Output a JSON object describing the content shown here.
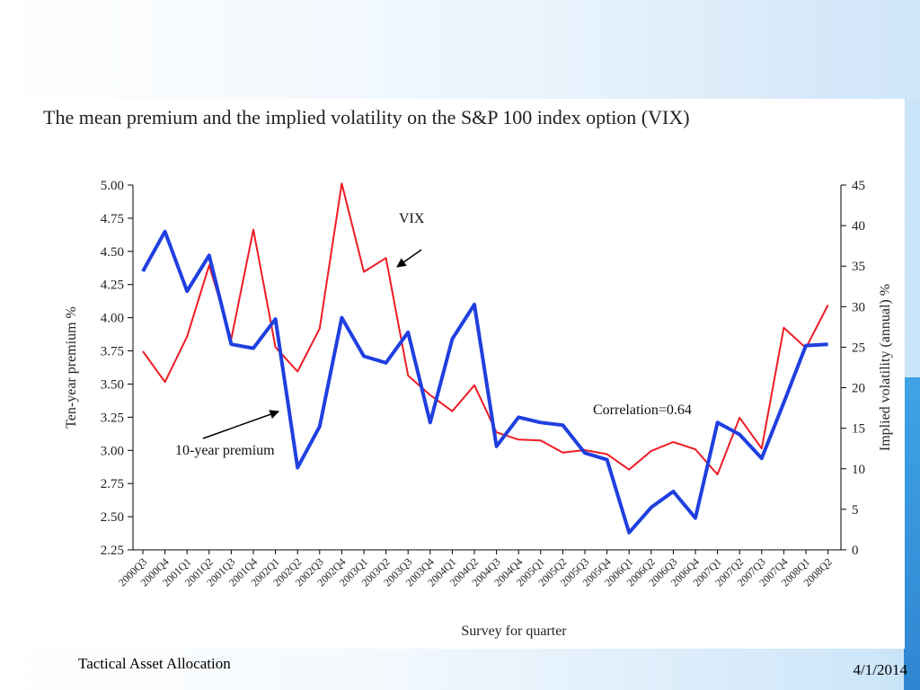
{
  "footer": {
    "left_text": "Tactical Asset Allocation",
    "date": "4/1/2014"
  },
  "colors": {
    "premium_line": "#1f3fe0",
    "vix_line": "#ee1c24",
    "axis": "#000000"
  },
  "chart_data": {
    "type": "line",
    "title": "The mean premium and the implied volatility on the S&P 100 index option (VIX)",
    "xlabel": "Survey for quarter",
    "ylabel_left": "Ten-year premium %",
    "ylabel_right": "Implied volatility (annual) %",
    "ylim_left": [
      2.25,
      5.0
    ],
    "ylim_right": [
      0,
      45
    ],
    "yticks_left": [
      "5.00",
      "4.75",
      "4.50",
      "4.25",
      "4.00",
      "3.75",
      "3.50",
      "3.25",
      "3.00",
      "2.75",
      "2.50",
      "2.25"
    ],
    "yticks_right": [
      "45",
      "40",
      "35",
      "30",
      "25",
      "20",
      "15",
      "10",
      "5",
      "0"
    ],
    "categories": [
      "2000Q3",
      "2000Q4",
      "2001Q1",
      "2001Q2",
      "2001Q3",
      "2001Q4",
      "2002Q1",
      "2002Q2",
      "2002Q3",
      "2002Q4",
      "2003Q1",
      "2003Q2",
      "2003Q3",
      "2003Q4",
      "2004Q1",
      "2004Q2",
      "2004Q3",
      "2004Q4",
      "2005Q1",
      "2005Q2",
      "2005Q3",
      "2005Q4",
      "2006Q1",
      "2006Q2",
      "2006Q3",
      "2006Q4",
      "2007Q1",
      "2007Q2",
      "2007Q3",
      "2007Q4",
      "2008Q1",
      "2008Q2"
    ],
    "series": [
      {
        "name": "10-year premium",
        "axis": "left",
        "values": [
          4.35,
          4.65,
          4.2,
          4.47,
          3.8,
          3.77,
          3.99,
          2.87,
          3.18,
          4.0,
          3.71,
          3.66,
          3.89,
          3.21,
          3.84,
          4.1,
          3.03,
          3.25,
          3.21,
          3.19,
          2.98,
          2.93,
          2.38,
          2.57,
          2.69,
          2.49,
          3.21,
          3.12,
          2.94,
          3.36,
          3.79,
          3.8
        ]
      },
      {
        "name": "VIX",
        "axis": "right",
        "values": [
          24.5,
          20.7,
          26.3,
          35.1,
          26.0,
          39.5,
          25.0,
          22.0,
          27.3,
          45.2,
          34.3,
          36.0,
          21.5,
          19.1,
          17.1,
          20.3,
          14.5,
          13.6,
          13.5,
          12.0,
          12.3,
          11.8,
          9.9,
          12.2,
          13.3,
          12.4,
          9.3,
          16.3,
          12.5,
          27.4,
          24.9,
          30.2
        ]
      }
    ],
    "annotations": [
      {
        "text": "VIX"
      },
      {
        "text": "10-year premium"
      },
      {
        "text": "Correlation=0.64"
      }
    ],
    "grid": false,
    "legend": "none"
  }
}
